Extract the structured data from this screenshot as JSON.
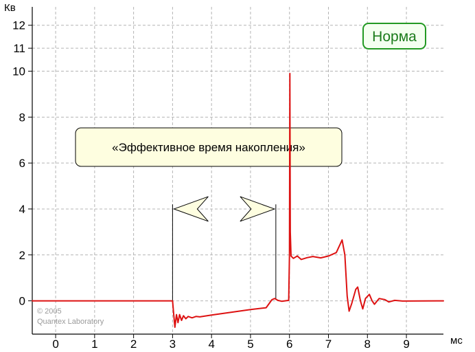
{
  "chart_data": {
    "type": "line",
    "title": "",
    "xlabel": "мс",
    "ylabel": "Кв",
    "xlim": [
      -0.6,
      9.95
    ],
    "ylim": [
      -1.45,
      12.8
    ],
    "grid": true,
    "x_ticks": [
      0,
      1,
      2,
      3,
      4,
      5,
      6,
      7,
      8,
      9
    ],
    "x_tick_labels": [
      "0",
      "1",
      "2",
      "3",
      "4",
      "5",
      "6",
      "7",
      "8",
      "9"
    ],
    "y_ticks": [
      0,
      2,
      4,
      6,
      8,
      10,
      11,
      12
    ],
    "y_tick_labels": [
      "0",
      "2",
      "4",
      "6",
      "8",
      "10",
      "11",
      "12"
    ],
    "series": [
      {
        "color": "#dd1111",
        "points": [
          [
            -0.6,
            0
          ],
          [
            2.99,
            0
          ],
          [
            3.0,
            0
          ],
          [
            3.03,
            -0.6
          ],
          [
            3.06,
            -1.15
          ],
          [
            3.1,
            -0.6
          ],
          [
            3.14,
            -0.95
          ],
          [
            3.18,
            -0.6
          ],
          [
            3.23,
            -0.85
          ],
          [
            3.28,
            -0.65
          ],
          [
            3.34,
            -0.78
          ],
          [
            3.4,
            -0.68
          ],
          [
            3.5,
            -0.74
          ],
          [
            3.6,
            -0.68
          ],
          [
            3.7,
            -0.7
          ],
          [
            4.0,
            -0.62
          ],
          [
            4.5,
            -0.5
          ],
          [
            5.0,
            -0.38
          ],
          [
            5.4,
            -0.3
          ],
          [
            5.55,
            0.05
          ],
          [
            5.62,
            0.1
          ],
          [
            5.7,
            0.02
          ],
          [
            5.8,
            -0.02
          ],
          [
            5.98,
            0.02
          ],
          [
            6.0,
            2.0
          ],
          [
            6.01,
            9.9
          ],
          [
            6.02,
            3.0
          ],
          [
            6.04,
            1.95
          ],
          [
            6.1,
            1.85
          ],
          [
            6.2,
            1.95
          ],
          [
            6.3,
            1.8
          ],
          [
            6.45,
            1.88
          ],
          [
            6.6,
            1.93
          ],
          [
            6.8,
            1.87
          ],
          [
            7.0,
            1.95
          ],
          [
            7.2,
            2.1
          ],
          [
            7.35,
            2.65
          ],
          [
            7.42,
            2.0
          ],
          [
            7.48,
            0.2
          ],
          [
            7.53,
            -0.45
          ],
          [
            7.6,
            -0.1
          ],
          [
            7.7,
            0.5
          ],
          [
            7.75,
            0.6
          ],
          [
            7.82,
            0.0
          ],
          [
            7.88,
            -0.35
          ],
          [
            7.95,
            0.1
          ],
          [
            8.05,
            0.28
          ],
          [
            8.12,
            0.0
          ],
          [
            8.18,
            -0.15
          ],
          [
            8.3,
            0.1
          ],
          [
            8.45,
            0.05
          ],
          [
            8.55,
            -0.05
          ],
          [
            8.7,
            0.02
          ],
          [
            8.9,
            -0.01
          ],
          [
            9.95,
            0
          ]
        ]
      }
    ],
    "annotations": {
      "badge": "Норма",
      "label": "«Эффективное время накопления»",
      "marker_left_x": 3.0,
      "marker_right_x": 5.65
    },
    "copyright": [
      "© 2005",
      "Quantex Laboratory"
    ]
  }
}
